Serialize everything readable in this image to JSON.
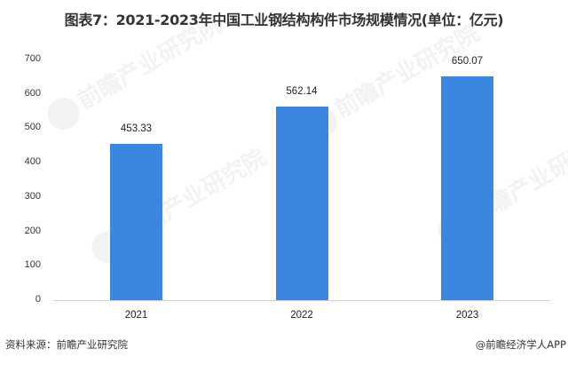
{
  "title": "图表7：2021-2023年中国工业钢结构构件市场规模情况(单位：亿元)",
  "chart_data": {
    "type": "bar",
    "title": "图表7：2021-2023年中国工业钢结构构件市场规模情况(单位：亿元)",
    "categories": [
      "2021",
      "2022",
      "2023"
    ],
    "values": [
      453.33,
      562.14,
      650.07
    ],
    "value_labels": [
      "453.33",
      "562.14",
      "650.07"
    ],
    "xlabel": "",
    "ylabel": "",
    "unit": "亿元",
    "ylim": [
      0,
      700
    ],
    "yticks": [
      "0",
      "100",
      "200",
      "300",
      "400",
      "500",
      "600",
      "700"
    ],
    "grid": false,
    "legend": null,
    "bar_color": "#3a86e0"
  },
  "footer": {
    "source": "资料来源：前瞻产业研究院",
    "credit": "@前瞻经济学人APP"
  },
  "watermark": "前瞻产业研究院"
}
